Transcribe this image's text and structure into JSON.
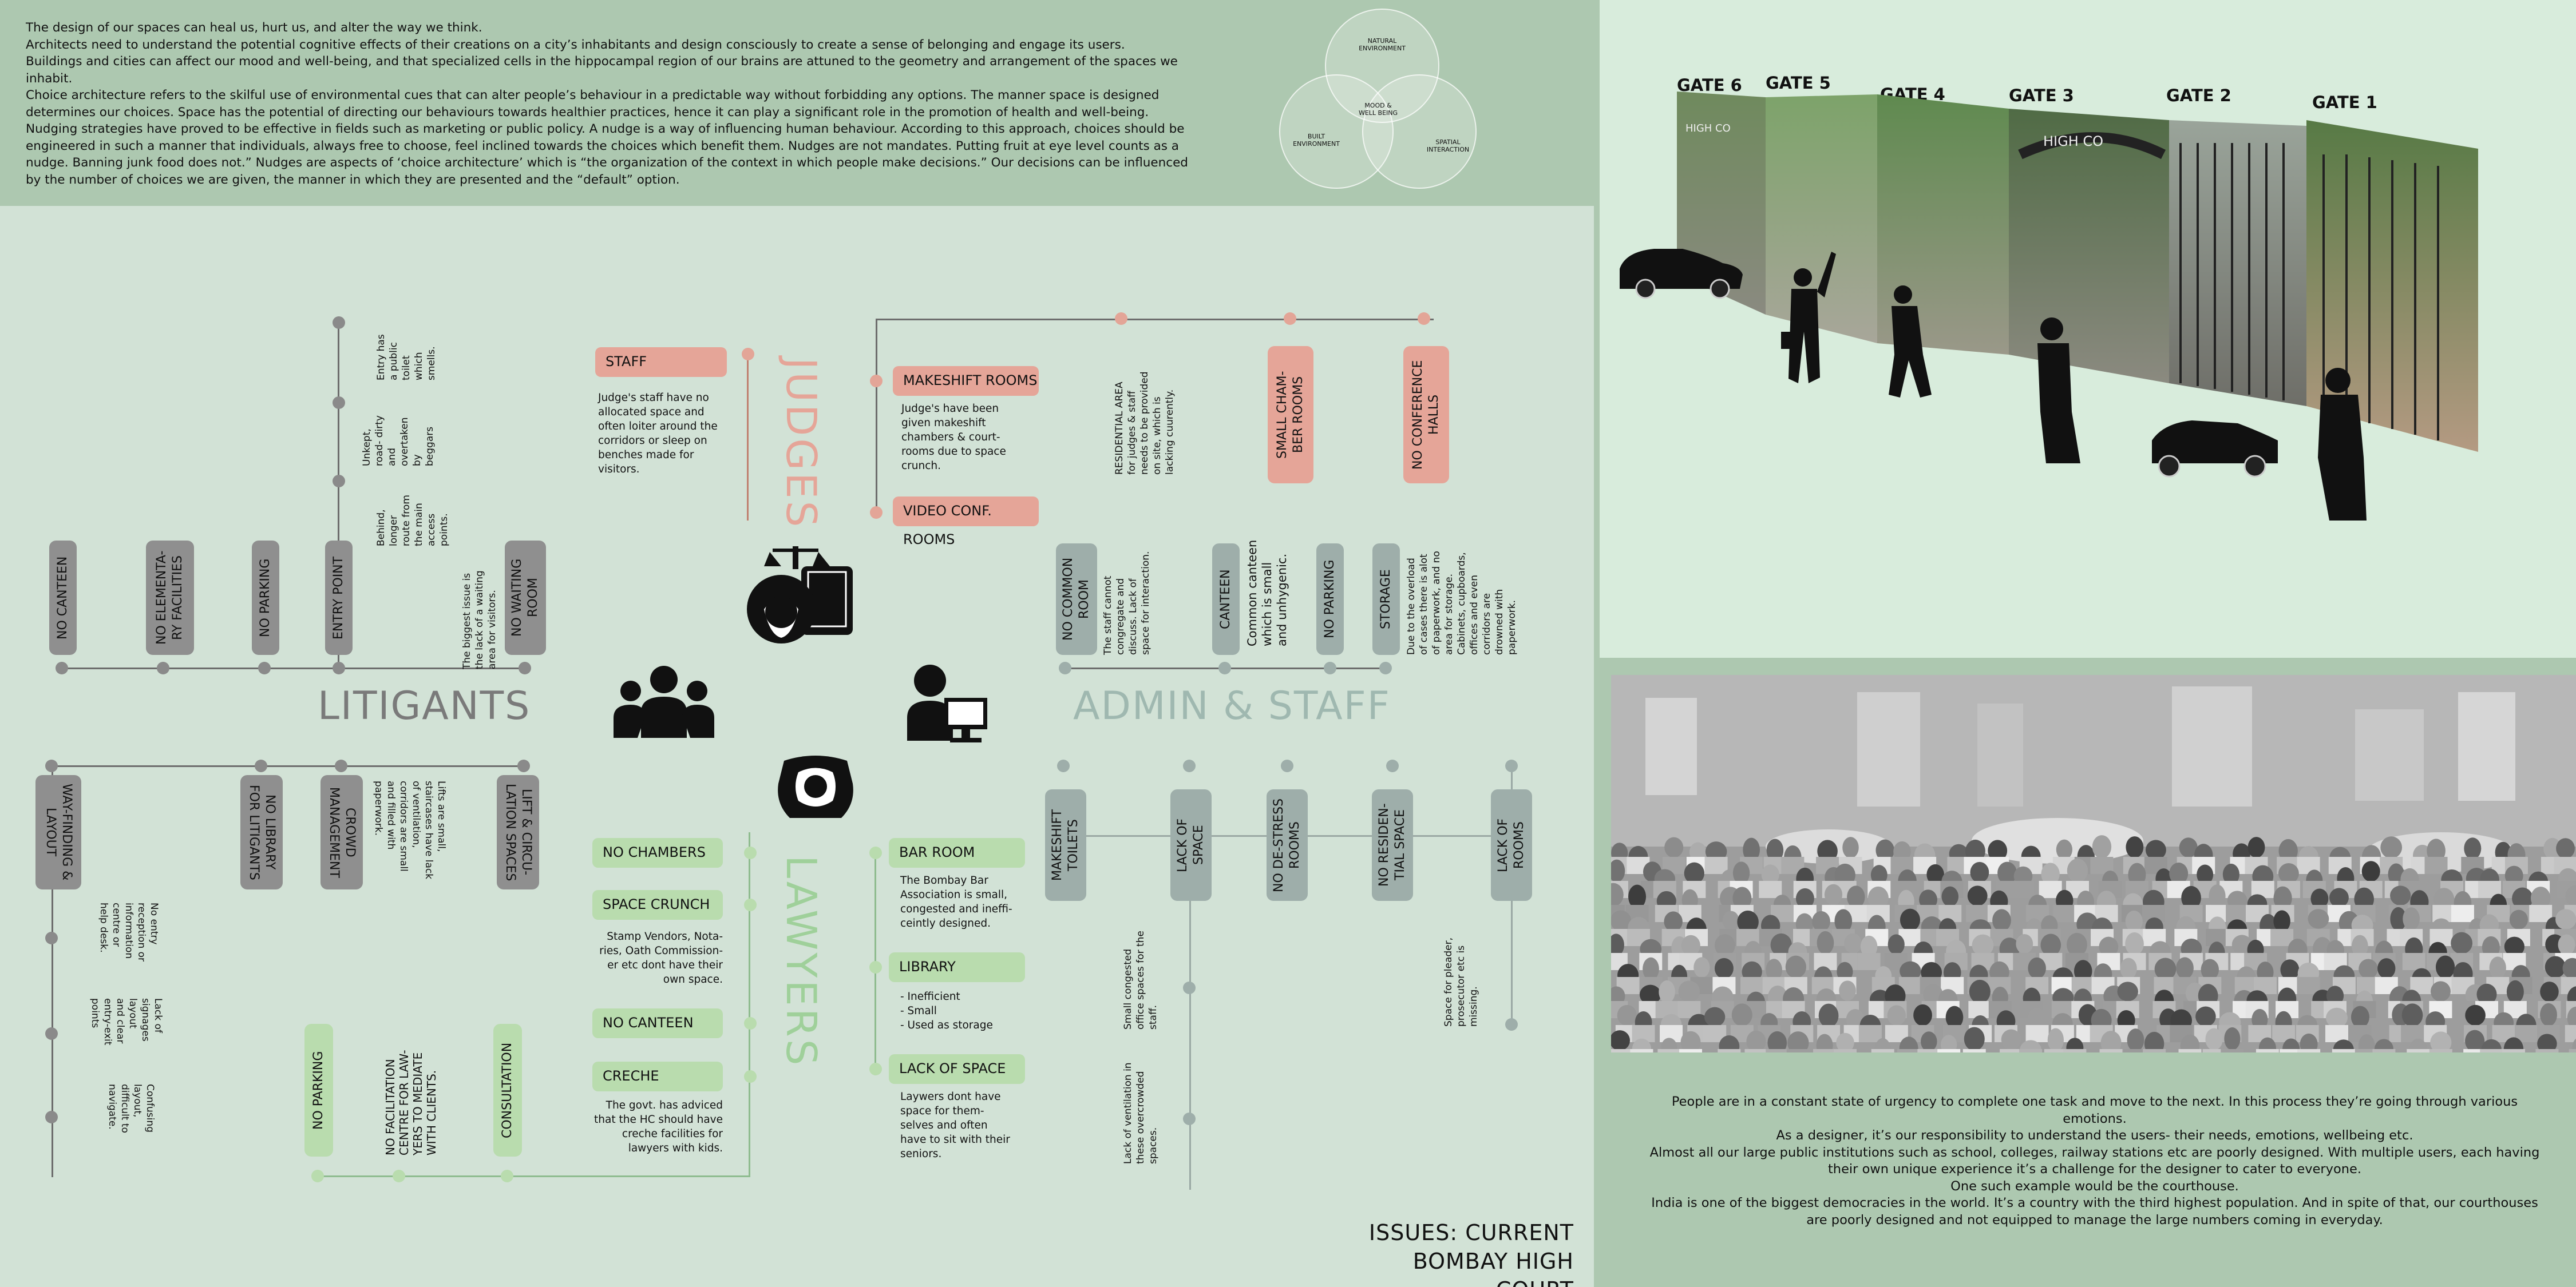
{
  "intro": [
    "The design of our spaces can heal us, hurt us, and alter the way we think.",
    "Architects need to understand the potential cognitive effects of their creations on a city’s inhabitants and design consciously to create a sense of belonging and engage its users.",
    "Buildings and cities can affect our mood and well-being, and that specialized cells in the hippocampal region of our brains are attuned to the geometry and arrangement of the spaces we inhabit.",
    "Choice architecture refers to the skilful use of environmental cues that can alter people’s behaviour in a predictable way without forbidding any options. The manner space is designed determines our choices. Space has the potential of directing our behaviours towards healthier practices, hence it can play a significant role in the promotion of health and well-being. Nudging strategies have proved to be effective in fields such as marketing or public policy.  A nudge is a way of influencing human behaviour. According to this approach, choices should be engineered in such a manner that individuals, always free to choose, feel inclined towards the choices which benefit them. Nudges are not mandates. Putting fruit at eye level counts as a nudge. Banning junk food does not.” Nudges are aspects of ‘choice architecture’ which is “the organization of the context in which people make decisions.” Our decisions can be influenced by the number of choices we are given, the manner in which they are presented and the “default” option."
  ],
  "venn": {
    "top": "NATURAL\nENVIRONMENT",
    "left": "BUILT\nENVIRONMENT",
    "right": "SPATIAL\nINTERACTION",
    "center": "MOOD &\nWELL BEING"
  },
  "groups": {
    "litigants": "LITIGANTS",
    "admin": "ADMIN & STAFF",
    "judges": "JUDGES",
    "lawyers": "LAWYERS"
  },
  "litigants_top": [
    {
      "label": "NO CANTEEN"
    },
    {
      "label": "NO ELEMENTA-\nRY FACILITIES"
    },
    {
      "label": "NO PARKING"
    },
    {
      "label": "ENTRY  POINT"
    },
    {
      "label": "NO WAITING\nROOM"
    }
  ],
  "litigants_top_notes": {
    "waiting": "The biggest issue is\nthe lack of a waiting\narea for visitors.",
    "smell": "Entry has\na public\ntoilet\nwhich\nsmells.",
    "road": "Unkept,\nroad- dirty\nand\novertaken\nby\nbeggars",
    "behind": "Behind,\nlonger\nroute from\nthe main\naccess\npoints."
  },
  "litigants_bottom": [
    {
      "label": "WAY-FINDING &\nLAYOUT"
    },
    {
      "label": "NO LIBRARY\nFOR LITIGANTS"
    },
    {
      "label": "CROWD\nMANAGEMENT"
    },
    {
      "label": "LIFT & CIRCU-\nLATION SPACES"
    }
  ],
  "litigants_bottom_notes": {
    "lifts": "Lifts are small,\nstaircases have lack\nof ventilation,\ncorridors are small\nand filled with\npaperwork.",
    "reception": "No entry\nreception or\ninformation\ncentre or\nhelp desk.",
    "signages": "Lack of\nsignages\nlayout\nand clear\nentry-exit\npoints",
    "confusing": "Confusing\nlayout,\ndifficult to\nnavigate."
  },
  "lawyers_green": [
    {
      "label": "NO PARKING"
    },
    {
      "label": "NO FACILITATION\nCENTRE FOR LAW-\nYERS TO MEDIATE\nWITH CLIENTS."
    },
    {
      "label": "CONSULTATION"
    }
  ],
  "judges_left": {
    "staff": "STAFF",
    "staff_desc": "Judge's staff have no\nallocated space and\noften loiter around the\ncorridors or sleep on\nbenches made for\nvisitors."
  },
  "judges_right": {
    "makeshift": "MAKESHIFT ROOMS",
    "makeshift_desc": "Judge's have been\ngiven makeshift\nchambers & court-\nrooms due to space\ncrunch.",
    "video": "VIDEO CONF. ROOMS"
  },
  "judges_top": {
    "residential": "RESIDENTIAL AREA\nfor judges & staff\nneeds to be provided\non site, which is\nlacking cuurently.",
    "chambers": "SMALL CHAM-\nBER ROOMS",
    "conference": "NO CONFERENCE\nHALLS"
  },
  "admin_top": {
    "common": "NO COMMON\nROOM",
    "common_desc": "The staff cannot\ncongregate and\ndiscuss. Lack of\nspace for interaction.",
    "canteen": "CANTEEN",
    "canteen_desc": "Common canteen\nwhich is small\nand unhygenic.",
    "parking": "NO PARKING",
    "storage": "STORAGE",
    "storage_desc": "Due to the overload\nof cases there is alot\nof paperwork, and no\narea for storage.\nCabinets, cupboards,\noffices and even\ncorridors are\ndrowned with\npaperwork."
  },
  "admin_bottom": {
    "toilets": "MAKESHIFT\nTOILETS",
    "lack_space": "LACK OF\nSPACE",
    "destress": "NO DE-STRESS\nROOMS",
    "residential": "NO RESIDEN-\nTIAL SPACE",
    "rooms": "LACK OF\nROOMS",
    "congested": "Small congested\noffice spaces for the\nstaff.",
    "ventilation": "Lack of ventilation in\nthese overcrowded\nspaces.",
    "pleader": "Space for pleader,\nprosecutor etc is\nmissing."
  },
  "lawyers_left": {
    "chambers": "NO CHAMBERS",
    "crunch": "SPACE CRUNCH",
    "crunch_desc": "Stamp Vendors, Nota-\nries, Oath Commission-\ner etc dont have their\nown space.",
    "canteen": "NO CANTEEN",
    "creche": "CRECHE",
    "creche_desc": "The govt. has adviced\nthat the HC should have\ncreche facilities for\nlawyers with kids."
  },
  "lawyers_right": {
    "bar": "BAR ROOM",
    "bar_desc": "The Bombay Bar\nAssociation is small,\ncongested and ineffi-\nceintly designed.",
    "library": "LIBRARY",
    "library_desc": "- Inefficient\n- Small\n- Used as storage",
    "lack": "LACK OF SPACE",
    "lack_desc": "Laywers dont have\nspace for them-\nselves and often\nhave to sit with their\nseniors."
  },
  "gates": [
    "GATE 6",
    "GATE 5",
    "GATE 4",
    "GATE 3",
    "GATE 2",
    "GATE 1"
  ],
  "photo_signs": [
    "HIGH CO",
    "HIGH CO"
  ],
  "outro": [
    "People are in a constant state of urgency to complete one task and move to the next. In this process they’re going through various emotions.",
    "As a designer, it’s our responsibility to understand the users- their needs, emotions, wellbeing etc.",
    "Almost all our large public institutions such as school, colleges, railway stations etc are poorly designed. With multiple users, each having their own unique experience it’s a challenge for the designer to cater to everyone.",
    "One such example would be the courthouse.",
    "India is one of the biggest democracies in the world. It’s a country with the third highest population. And in spite of that, our courthouses are poorly designed and not equipped to manage the large numbers coming in everyday."
  ],
  "issues": "ISSUES: CURRENT\nBOMBAY HIGH COURT",
  "colors": {
    "bg": "#d2e2d6",
    "band": "#adc8b0",
    "grey": "#8f8f8f",
    "pink": "#e5a598",
    "green": "#b9dcae"
  }
}
